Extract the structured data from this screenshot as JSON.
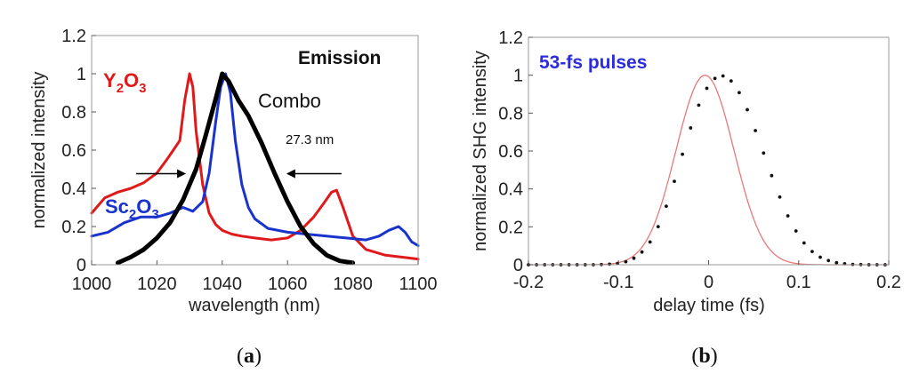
{
  "chart_data": [
    {
      "type": "line",
      "panel": "(a)",
      "title": "Emission",
      "xlabel": "wavelength (nm)",
      "ylabel": "normalized intensity",
      "xlim": [
        1000,
        1100
      ],
      "ylim": [
        0,
        1.2
      ],
      "xticks": [
        "1000",
        "1020",
        "1040",
        "1060",
        "1080",
        "1100"
      ],
      "yticks": [
        "0",
        "0.2",
        "0.4",
        "0.6",
        "0.8",
        "1",
        "1.2"
      ],
      "annotation": "27.3 nm",
      "fwhm_arrows": {
        "left_x": 1030,
        "right_x": 1058,
        "y": 0.5
      },
      "series": [
        {
          "name": "Y2O3",
          "color": "#e0191b",
          "label": {
            "base": "Y",
            "sub1": "2",
            "mid": "O",
            "sub2": "3"
          },
          "x": [
            1000,
            1004,
            1008,
            1012,
            1016,
            1020,
            1023,
            1025,
            1027,
            1028.5,
            1030,
            1031,
            1032,
            1034,
            1036,
            1038,
            1040,
            1043,
            1046,
            1050,
            1055,
            1060,
            1064,
            1068,
            1071,
            1073.5,
            1075,
            1077,
            1080,
            1084,
            1090,
            1100
          ],
          "y": [
            0.27,
            0.35,
            0.38,
            0.4,
            0.43,
            0.48,
            0.55,
            0.6,
            0.65,
            0.86,
            1.0,
            0.93,
            0.7,
            0.42,
            0.27,
            0.21,
            0.18,
            0.16,
            0.15,
            0.14,
            0.13,
            0.14,
            0.18,
            0.25,
            0.32,
            0.38,
            0.39,
            0.3,
            0.15,
            0.08,
            0.05,
            0.03
          ]
        },
        {
          "name": "Sc2O3",
          "color": "#1a33cc",
          "label": {
            "base": "Sc",
            "sub1": "2",
            "mid": "O",
            "sub2": "3"
          },
          "x": [
            1000,
            1005,
            1010,
            1015,
            1020,
            1024,
            1028,
            1031,
            1034,
            1036,
            1038,
            1039.5,
            1041,
            1042.5,
            1044,
            1046,
            1048,
            1050,
            1054,
            1060,
            1066,
            1072,
            1078,
            1084,
            1088,
            1091,
            1094,
            1096,
            1098,
            1100
          ],
          "y": [
            0.15,
            0.17,
            0.22,
            0.25,
            0.25,
            0.27,
            0.3,
            0.28,
            0.33,
            0.48,
            0.75,
            0.93,
            1.0,
            0.9,
            0.65,
            0.42,
            0.3,
            0.24,
            0.19,
            0.17,
            0.16,
            0.15,
            0.14,
            0.13,
            0.15,
            0.18,
            0.2,
            0.17,
            0.12,
            0.1
          ]
        },
        {
          "name": "Combo",
          "color": "#000000",
          "label": {
            "text": "Combo"
          },
          "x": [
            1008,
            1012,
            1016,
            1020,
            1024,
            1028,
            1032,
            1035,
            1038,
            1040,
            1042,
            1045,
            1048,
            1052,
            1056,
            1060,
            1064,
            1068,
            1072,
            1076,
            1080
          ],
          "y": [
            0.01,
            0.04,
            0.08,
            0.14,
            0.22,
            0.34,
            0.5,
            0.68,
            0.87,
            1.0,
            0.96,
            0.86,
            0.78,
            0.64,
            0.48,
            0.33,
            0.2,
            0.11,
            0.05,
            0.02,
            0.01
          ]
        }
      ]
    },
    {
      "type": "scatter",
      "panel": "(b)",
      "title": "53-fs pulses",
      "xlabel": "delay time (fs)",
      "ylabel": "normalized SHG intensity",
      "xlim": [
        -0.2,
        0.2
      ],
      "ylim": [
        0,
        1.2
      ],
      "xticks": [
        "-0.2",
        "-0.1",
        "0",
        "0.1",
        "0.2"
      ],
      "yticks": [
        "0",
        "0.2",
        "0.4",
        "0.6",
        "0.8",
        "1",
        "1.2"
      ],
      "gaussian_fit": {
        "center": -0.004,
        "fwhm": 0.0755,
        "color": "#e87878"
      },
      "points": {
        "x_start": -0.2,
        "x_step": 0.009,
        "count": 45,
        "values": [
          0,
          0,
          0,
          0,
          0,
          0,
          0,
          0,
          0,
          0.001,
          0.003,
          0.007,
          0.016,
          0.034,
          0.067,
          0.12,
          0.201,
          0.309,
          0.44,
          0.583,
          0.722,
          0.842,
          0.931,
          0.983,
          0.996,
          0.97,
          0.908,
          0.818,
          0.708,
          0.589,
          0.47,
          0.357,
          0.258,
          0.178,
          0.115,
          0.07,
          0.04,
          0.022,
          0.011,
          0.005,
          0.002,
          0.001,
          0,
          0,
          0
        ]
      }
    }
  ],
  "captions": {
    "a": "a",
    "b": "b"
  }
}
